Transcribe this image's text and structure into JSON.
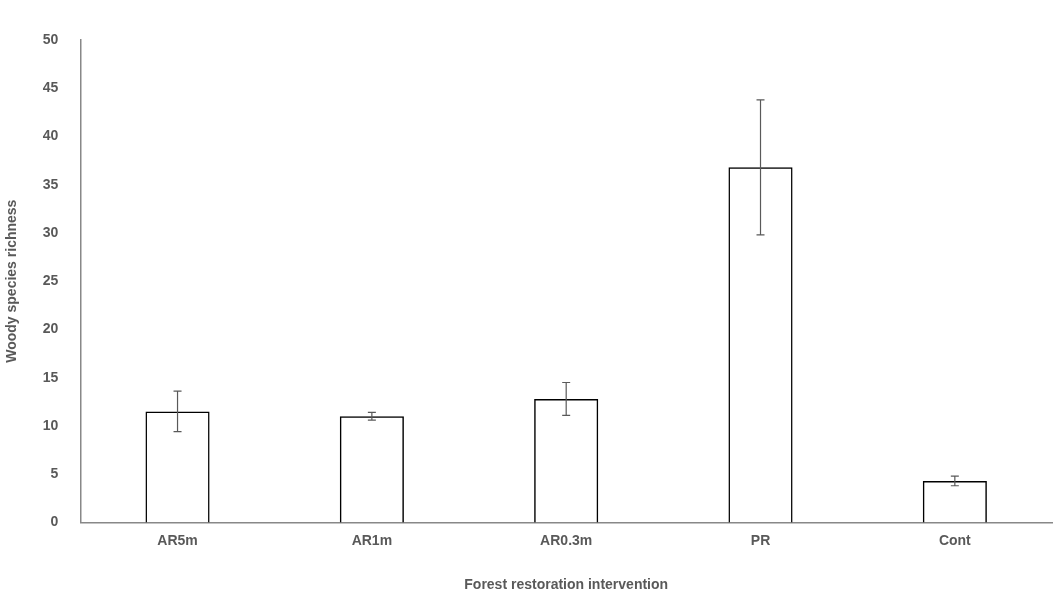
{
  "chart_data": {
    "type": "bar",
    "xlabel": "Forest restoration intervention",
    "ylabel": "Woody species richness",
    "categories": [
      "AR5m",
      "AR1m",
      "AR0.3m",
      "PR",
      "Cont"
    ],
    "values": [
      11.5,
      11.0,
      12.8,
      36.8,
      4.3
    ],
    "errors": [
      2.1,
      0.4,
      1.7,
      7.0,
      0.5
    ],
    "color": "#000000",
    "ylim": [
      0,
      50
    ],
    "yticks": [
      0,
      5,
      10,
      15,
      20,
      25,
      30,
      35,
      40,
      45,
      50
    ],
    "grid": false,
    "legend": false
  }
}
